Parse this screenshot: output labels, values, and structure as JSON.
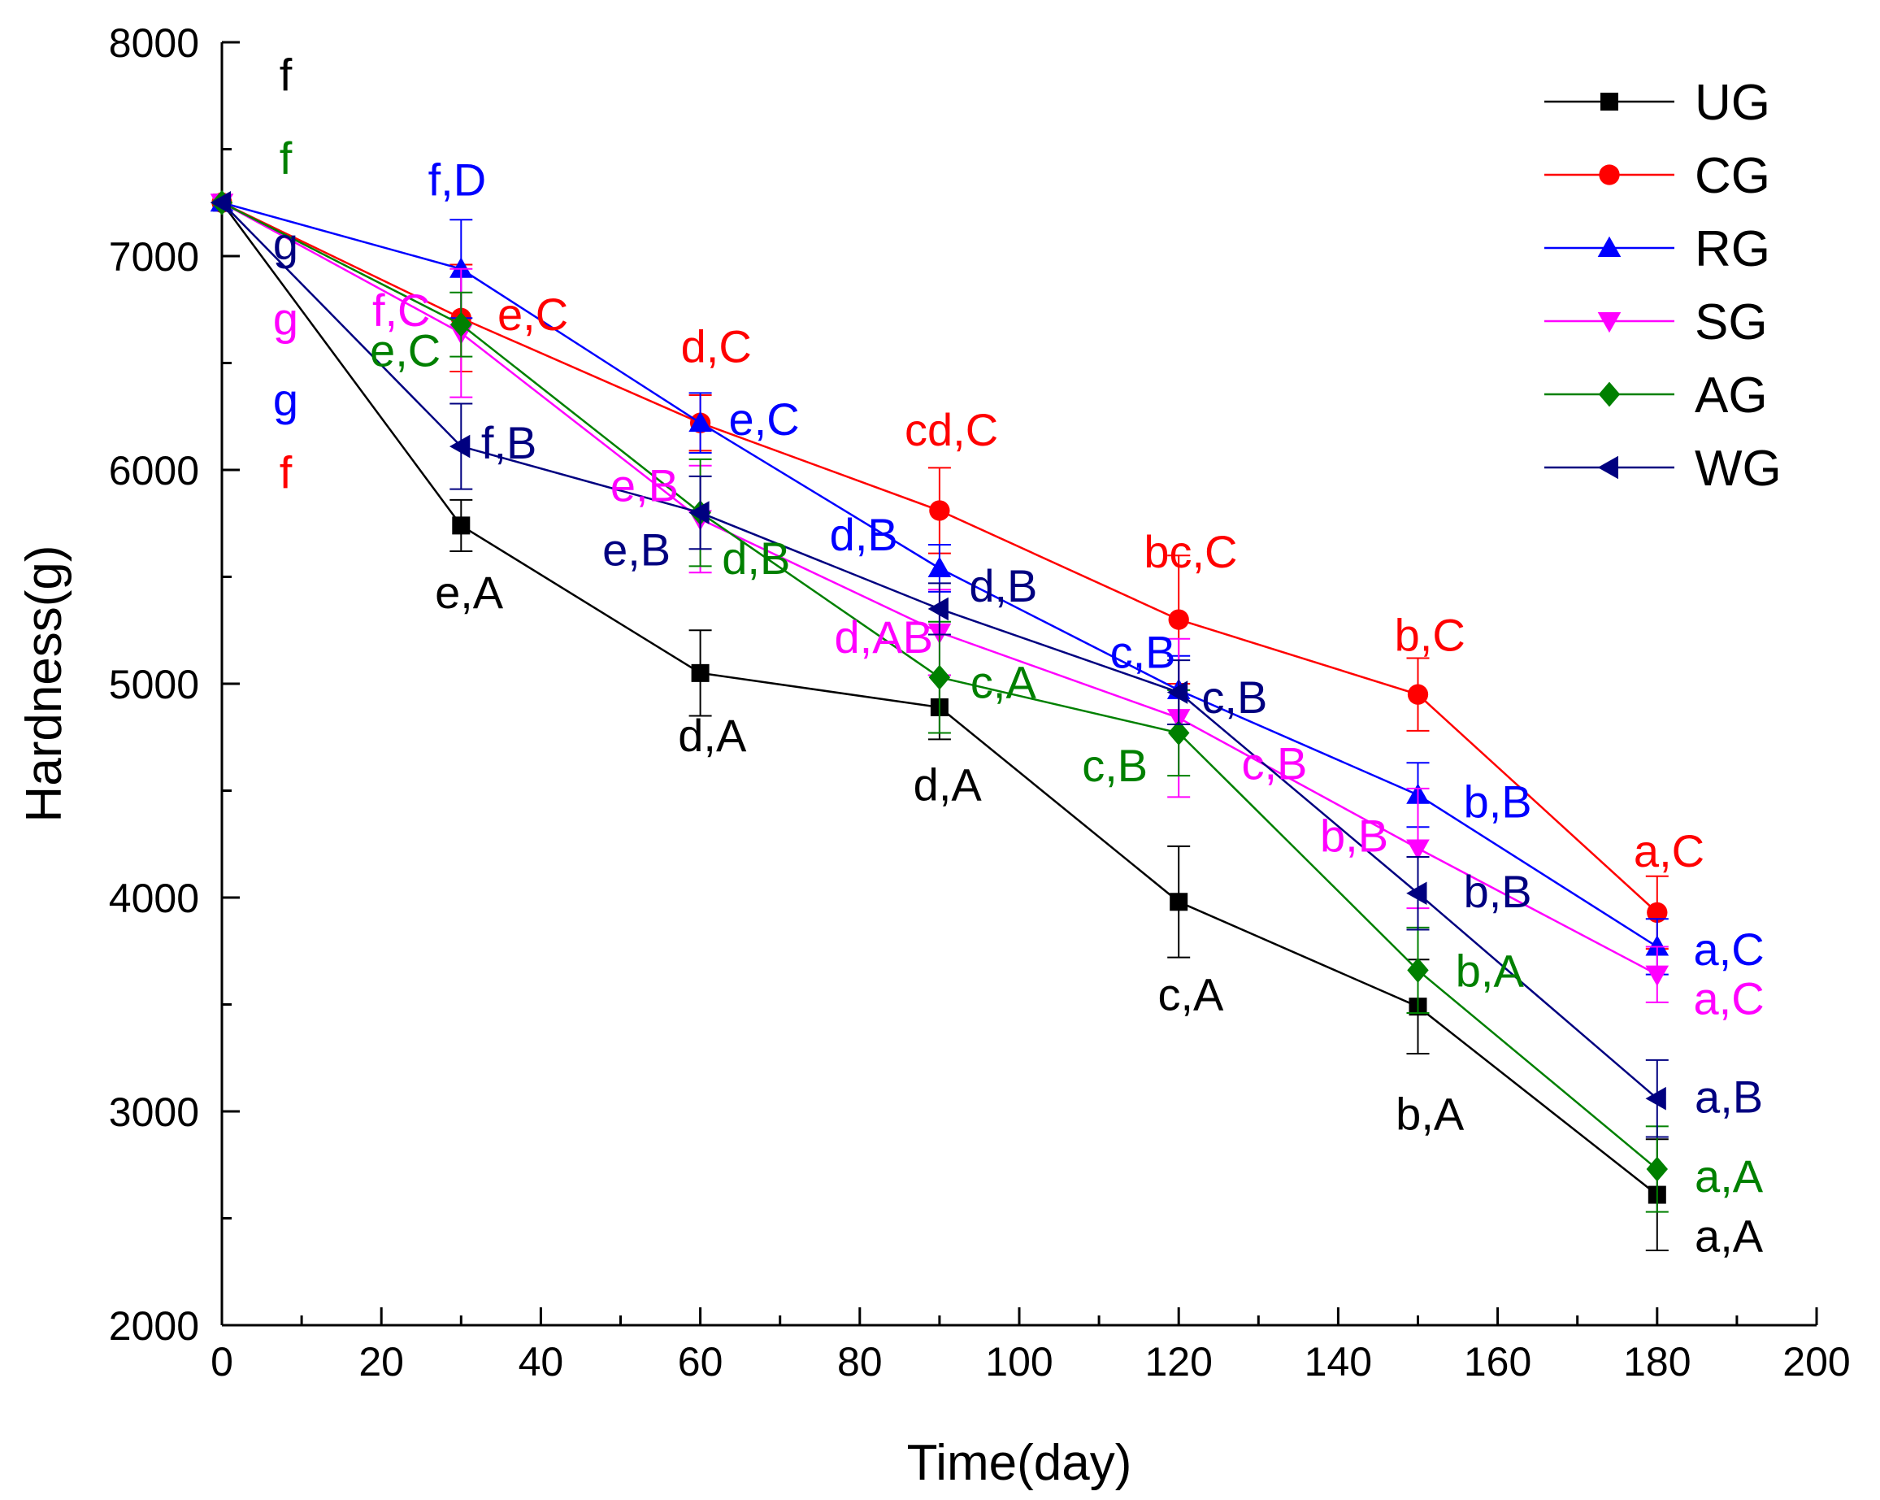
{
  "chart_data": {
    "type": "line",
    "title": "",
    "xlabel": "Time(day)",
    "ylabel": "Hardness(g)",
    "xlim": [
      0,
      200
    ],
    "ylim": [
      2000,
      8000
    ],
    "xticks": [
      0,
      20,
      40,
      60,
      80,
      100,
      120,
      140,
      160,
      180,
      200
    ],
    "yticks": [
      2000,
      3000,
      4000,
      5000,
      6000,
      7000,
      8000
    ],
    "legend_position": "top-right",
    "x": [
      0,
      30,
      60,
      90,
      120,
      150,
      180
    ],
    "series": [
      {
        "name": "UG",
        "color": "#000000",
        "marker": "square",
        "values": [
          7250,
          5740,
          5050,
          4890,
          3980,
          3490,
          2610
        ],
        "errors": [
          0,
          120,
          200,
          150,
          260,
          220,
          260
        ]
      },
      {
        "name": "CG",
        "color": "#ff0000",
        "marker": "circle",
        "values": [
          7250,
          6710,
          6220,
          5810,
          5300,
          4950,
          3930
        ],
        "errors": [
          0,
          250,
          130,
          200,
          300,
          170,
          170
        ]
      },
      {
        "name": "RG",
        "color": "#0000ff",
        "marker": "triangle-up",
        "values": [
          7250,
          6940,
          6220,
          5540,
          4970,
          4480,
          3770
        ],
        "errors": [
          0,
          230,
          140,
          110,
          160,
          150,
          130
        ]
      },
      {
        "name": "SG",
        "color": "#ff00ff",
        "marker": "triangle-down",
        "values": [
          7250,
          6640,
          5770,
          5240,
          4840,
          4230,
          3640
        ],
        "errors": [
          0,
          300,
          250,
          200,
          370,
          280,
          130
        ]
      },
      {
        "name": "AG",
        "color": "#008000",
        "marker": "diamond",
        "values": [
          7250,
          6680,
          5800,
          5030,
          4770,
          3660,
          2730
        ],
        "errors": [
          0,
          150,
          250,
          260,
          200,
          200,
          200
        ]
      },
      {
        "name": "WG",
        "color": "#000080",
        "marker": "triangle-left",
        "values": [
          7250,
          6110,
          5800,
          5350,
          4960,
          4020,
          3060
        ],
        "errors": [
          0,
          200,
          170,
          120,
          150,
          170,
          180
        ]
      }
    ],
    "annotations": [
      {
        "text": "f",
        "color": "#000000",
        "x": 8,
        "y": 7850
      },
      {
        "text": "f",
        "color": "#008000",
        "x": 8,
        "y": 7460
      },
      {
        "text": "g",
        "color": "#000080",
        "x": 8,
        "y": 7060
      },
      {
        "text": "g",
        "color": "#ff00ff",
        "x": 8,
        "y": 6710
      },
      {
        "text": "g",
        "color": "#0000ff",
        "x": 8,
        "y": 6330
      },
      {
        "text": "f",
        "color": "#ff0000",
        "x": 8,
        "y": 5990
      },
      {
        "text": "f,D",
        "color": "#0000ff",
        "x": 29.5,
        "y": 7360
      },
      {
        "text": "f,C",
        "color": "#ff00ff",
        "x": 22.5,
        "y": 6750
      },
      {
        "text": "e,C",
        "color": "#ff0000",
        "x": 39,
        "y": 6730
      },
      {
        "text": "e,C",
        "color": "#008000",
        "x": 23,
        "y": 6560
      },
      {
        "text": "f,B",
        "color": "#000080",
        "x": 36,
        "y": 6130
      },
      {
        "text": "e,A",
        "color": "#000000",
        "x": 31,
        "y": 5430
      },
      {
        "text": "d,C",
        "color": "#ff0000",
        "x": 62,
        "y": 6580
      },
      {
        "text": "e,C",
        "color": "#0000ff",
        "x": 68,
        "y": 6240
      },
      {
        "text": "e,B",
        "color": "#ff00ff",
        "x": 53,
        "y": 5930
      },
      {
        "text": "e,B",
        "color": "#000080",
        "x": 52,
        "y": 5630
      },
      {
        "text": "d,B",
        "color": "#008000",
        "x": 67,
        "y": 5590
      },
      {
        "text": "d,A",
        "color": "#000000",
        "x": 61.5,
        "y": 4760
      },
      {
        "text": "cd,C",
        "color": "#ff0000",
        "x": 91.5,
        "y": 6190
      },
      {
        "text": "d,B",
        "color": "#0000ff",
        "x": 80.5,
        "y": 5700
      },
      {
        "text": "d,B",
        "color": "#000080",
        "x": 98,
        "y": 5460
      },
      {
        "text": "d,AB",
        "color": "#ff00ff",
        "x": 83,
        "y": 5220
      },
      {
        "text": "c,A",
        "color": "#008000",
        "x": 98,
        "y": 5010
      },
      {
        "text": "d,A",
        "color": "#000000",
        "x": 91,
        "y": 4530
      },
      {
        "text": "bc,C",
        "color": "#ff0000",
        "x": 121.5,
        "y": 5620
      },
      {
        "text": "c,B",
        "color": "#0000ff",
        "x": 115.5,
        "y": 5150
      },
      {
        "text": "c,B",
        "color": "#000080",
        "x": 127,
        "y": 4940
      },
      {
        "text": "c,B",
        "color": "#ff00ff",
        "x": 132,
        "y": 4630
      },
      {
        "text": "c,B",
        "color": "#008000",
        "x": 112,
        "y": 4620
      },
      {
        "text": "c,A",
        "color": "#000000",
        "x": 121.5,
        "y": 3550
      },
      {
        "text": "b,C",
        "color": "#ff0000",
        "x": 151.5,
        "y": 5230
      },
      {
        "text": "b,B",
        "color": "#0000ff",
        "x": 160,
        "y": 4450
      },
      {
        "text": "b,B",
        "color": "#ff00ff",
        "x": 142,
        "y": 4290
      },
      {
        "text": "b,B",
        "color": "#000080",
        "x": 160,
        "y": 4030
      },
      {
        "text": "b,A",
        "color": "#008000",
        "x": 159,
        "y": 3660
      },
      {
        "text": "b,A",
        "color": "#000000",
        "x": 151.5,
        "y": 2990
      },
      {
        "text": "a,C",
        "color": "#ff0000",
        "x": 181.5,
        "y": 4220
      },
      {
        "text": "a,C",
        "color": "#0000ff",
        "x": 189,
        "y": 3760
      },
      {
        "text": "a,C",
        "color": "#ff00ff",
        "x": 189,
        "y": 3530
      },
      {
        "text": "a,B",
        "color": "#000080",
        "x": 189,
        "y": 3070
      },
      {
        "text": "a,A",
        "color": "#008000",
        "x": 189,
        "y": 2700
      },
      {
        "text": "a,A",
        "color": "#000000",
        "x": 189,
        "y": 2420
      }
    ]
  }
}
